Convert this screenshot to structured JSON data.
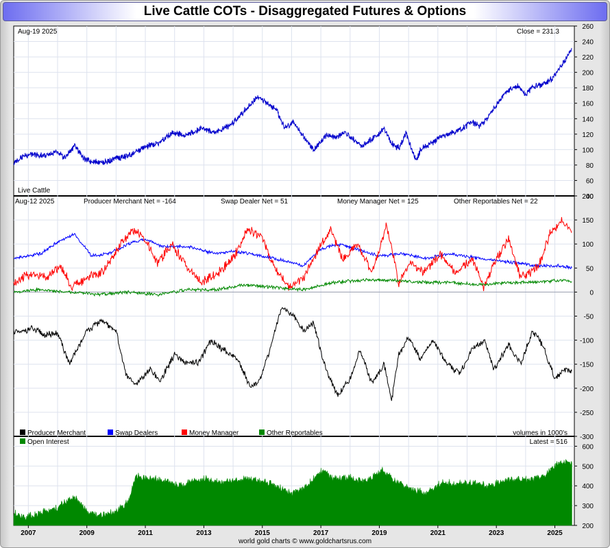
{
  "header": {
    "title": "Live Cattle COTs - Disaggregated Futures & Options"
  },
  "footer": {
    "credit": "world gold charts © www.goldchartsrus.com"
  },
  "colors": {
    "price": "#0000cc",
    "producer_merchant": "#000000",
    "swap_dealers": "#0000ff",
    "money_manager": "#ff0000",
    "other_reportables": "#008800",
    "open_interest": "#008800",
    "grid": "#dde2ee",
    "title_gradient": "#6d6df0"
  },
  "chart_data": [
    {
      "type": "line",
      "panel": "price",
      "date_label": "Aug-19  2025",
      "close_label": "Close = 231.3",
      "series_label": "Live Cattle",
      "x_range": [
        "2006-07",
        "2025-09"
      ],
      "ylim": [
        40,
        260
      ],
      "y_ticks": [
        40,
        60,
        80,
        100,
        120,
        140,
        160,
        180,
        200,
        220,
        240,
        260
      ],
      "series": [
        {
          "name": "Live Cattle",
          "color": "#0000cc",
          "points": [
            [
              "2006-07",
              82
            ],
            [
              "2006-10",
              90
            ],
            [
              "2007-01",
              94
            ],
            [
              "2007-06",
              92
            ],
            [
              "2007-12",
              96
            ],
            [
              "2008-04",
              90
            ],
            [
              "2008-08",
              105
            ],
            [
              "2008-12",
              88
            ],
            [
              "2009-03",
              84
            ],
            [
              "2009-09",
              84
            ],
            [
              "2010-01",
              88
            ],
            [
              "2010-06",
              92
            ],
            [
              "2010-12",
              102
            ],
            [
              "2011-06",
              108
            ],
            [
              "2011-12",
              122
            ],
            [
              "2012-06",
              118
            ],
            [
              "2012-12",
              128
            ],
            [
              "2013-06",
              122
            ],
            [
              "2013-12",
              132
            ],
            [
              "2014-04",
              145
            ],
            [
              "2014-08",
              158
            ],
            [
              "2014-11",
              168
            ],
            [
              "2015-03",
              160
            ],
            [
              "2015-07",
              150
            ],
            [
              "2015-10",
              128
            ],
            [
              "2016-02",
              136
            ],
            [
              "2016-06",
              116
            ],
            [
              "2016-10",
              100
            ],
            [
              "2017-03",
              118
            ],
            [
              "2017-07",
              116
            ],
            [
              "2017-11",
              122
            ],
            [
              "2018-03",
              112
            ],
            [
              "2018-06",
              104
            ],
            [
              "2018-10",
              114
            ],
            [
              "2019-03",
              126
            ],
            [
              "2019-06",
              108
            ],
            [
              "2019-09",
              102
            ],
            [
              "2019-12",
              122
            ],
            [
              "2020-04",
              86
            ],
            [
              "2020-06",
              100
            ],
            [
              "2020-10",
              108
            ],
            [
              "2021-01",
              114
            ],
            [
              "2021-05",
              120
            ],
            [
              "2021-10",
              126
            ],
            [
              "2022-03",
              136
            ],
            [
              "2022-06",
              130
            ],
            [
              "2022-09",
              140
            ],
            [
              "2022-12",
              154
            ],
            [
              "2023-04",
              170
            ],
            [
              "2023-07",
              180
            ],
            [
              "2023-10",
              182
            ],
            [
              "2024-01",
              170
            ],
            [
              "2024-04",
              182
            ],
            [
              "2024-08",
              184
            ],
            [
              "2024-12",
              192
            ],
            [
              "2025-04",
              210
            ],
            [
              "2025-07",
              225
            ],
            [
              "2025-08",
              231.3
            ]
          ]
        }
      ]
    },
    {
      "type": "line",
      "panel": "cot",
      "date_label": "Aug-12  2025",
      "net_labels": [
        "Producer Merchant Net = -164",
        "Swap Dealer Net = 51",
        "Money Manager Net = 125",
        "Other Reportables Net = 22"
      ],
      "legend": [
        "Producer Merchant",
        "Swap Dealers",
        "Money Manager",
        "Other Reportables"
      ],
      "units_note": "volumes in 1000's",
      "ylim": [
        -300,
        200
      ],
      "y_ticks": [
        -300,
        -250,
        -200,
        -150,
        -100,
        -50,
        0,
        50,
        100,
        150,
        200
      ],
      "series": [
        {
          "name": "Producer Merchant",
          "color": "#000000",
          "points": [
            [
              "2006-07",
              -80
            ],
            [
              "2006-10",
              -85
            ],
            [
              "2007-02",
              -75
            ],
            [
              "2007-08",
              -90
            ],
            [
              "2008-01",
              -85
            ],
            [
              "2008-06",
              -150
            ],
            [
              "2008-09",
              -120
            ],
            [
              "2009-01",
              -80
            ],
            [
              "2009-07",
              -60
            ],
            [
              "2010-01",
              -80
            ],
            [
              "2010-05",
              -170
            ],
            [
              "2010-09",
              -195
            ],
            [
              "2011-03",
              -160
            ],
            [
              "2011-07",
              -185
            ],
            [
              "2012-01",
              -130
            ],
            [
              "2012-06",
              -150
            ],
            [
              "2012-11",
              -145
            ],
            [
              "2013-04",
              -100
            ],
            [
              "2013-09",
              -120
            ],
            [
              "2014-03",
              -140
            ],
            [
              "2014-08",
              -195
            ],
            [
              "2014-12",
              -185
            ],
            [
              "2015-04",
              -120
            ],
            [
              "2015-09",
              -30
            ],
            [
              "2016-02",
              -50
            ],
            [
              "2016-06",
              -80
            ],
            [
              "2016-10",
              -65
            ],
            [
              "2017-03",
              -160
            ],
            [
              "2017-08",
              -215
            ],
            [
              "2018-01",
              -180
            ],
            [
              "2018-05",
              -120
            ],
            [
              "2018-10",
              -190
            ],
            [
              "2019-03",
              -150
            ],
            [
              "2019-06",
              -225
            ],
            [
              "2019-09",
              -130
            ],
            [
              "2020-01",
              -95
            ],
            [
              "2020-06",
              -140
            ],
            [
              "2020-11",
              -100
            ],
            [
              "2021-05",
              -150
            ],
            [
              "2021-10",
              -170
            ],
            [
              "2022-03",
              -120
            ],
            [
              "2022-08",
              -100
            ],
            [
              "2022-12",
              -160
            ],
            [
              "2023-06",
              -110
            ],
            [
              "2023-11",
              -150
            ],
            [
              "2024-04",
              -80
            ],
            [
              "2024-08",
              -110
            ],
            [
              "2025-01",
              -180
            ],
            [
              "2025-05",
              -160
            ],
            [
              "2025-08",
              -164
            ]
          ]
        },
        {
          "name": "Swap Dealers",
          "color": "#0000ff",
          "points": [
            [
              "2006-07",
              70
            ],
            [
              "2007-06",
              80
            ],
            [
              "2008-03",
              110
            ],
            [
              "2008-08",
              120
            ],
            [
              "2009-03",
              75
            ],
            [
              "2009-10",
              80
            ],
            [
              "2010-06",
              100
            ],
            [
              "2011-01",
              110
            ],
            [
              "2011-08",
              95
            ],
            [
              "2012-06",
              95
            ],
            [
              "2013-06",
              80
            ],
            [
              "2014-01",
              85
            ],
            [
              "2014-08",
              80
            ],
            [
              "2015-06",
              70
            ],
            [
              "2016-06",
              55
            ],
            [
              "2017-01",
              90
            ],
            [
              "2017-08",
              100
            ],
            [
              "2018-03",
              90
            ],
            [
              "2019-01",
              75
            ],
            [
              "2019-10",
              80
            ],
            [
              "2020-08",
              70
            ],
            [
              "2021-06",
              80
            ],
            [
              "2022-06",
              70
            ],
            [
              "2023-03",
              65
            ],
            [
              "2023-10",
              60
            ],
            [
              "2024-06",
              55
            ],
            [
              "2025-03",
              55
            ],
            [
              "2025-08",
              51
            ]
          ]
        },
        {
          "name": "Money Manager",
          "color": "#ff0000",
          "points": [
            [
              "2006-07",
              20
            ],
            [
              "2007-03",
              40
            ],
            [
              "2007-09",
              30
            ],
            [
              "2008-02",
              55
            ],
            [
              "2008-07",
              10
            ],
            [
              "2009-01",
              30
            ],
            [
              "2009-08",
              45
            ],
            [
              "2010-03",
              100
            ],
            [
              "2010-08",
              130
            ],
            [
              "2011-01",
              110
            ],
            [
              "2011-06",
              60
            ],
            [
              "2011-12",
              100
            ],
            [
              "2012-06",
              50
            ],
            [
              "2012-12",
              20
            ],
            [
              "2013-07",
              40
            ],
            [
              "2014-02",
              80
            ],
            [
              "2014-07",
              130
            ],
            [
              "2015-01",
              115
            ],
            [
              "2015-06",
              50
            ],
            [
              "2015-12",
              10
            ],
            [
              "2016-06",
              30
            ],
            [
              "2016-12",
              90
            ],
            [
              "2017-05",
              130
            ],
            [
              "2017-10",
              70
            ],
            [
              "2018-04",
              100
            ],
            [
              "2018-10",
              40
            ],
            [
              "2019-04",
              140
            ],
            [
              "2019-09",
              20
            ],
            [
              "2020-02",
              60
            ],
            [
              "2020-07",
              40
            ],
            [
              "2021-02",
              80
            ],
            [
              "2021-08",
              40
            ],
            [
              "2022-03",
              70
            ],
            [
              "2022-08",
              10
            ],
            [
              "2022-12",
              60
            ],
            [
              "2023-06",
              110
            ],
            [
              "2023-11",
              30
            ],
            [
              "2024-06",
              50
            ],
            [
              "2024-11",
              120
            ],
            [
              "2025-04",
              150
            ],
            [
              "2025-08",
              125
            ]
          ]
        },
        {
          "name": "Other Reportables",
          "color": "#008800",
          "points": [
            [
              "2006-07",
              0
            ],
            [
              "2007-06",
              5
            ],
            [
              "2008-06",
              0
            ],
            [
              "2009-06",
              -5
            ],
            [
              "2010-06",
              0
            ],
            [
              "2011-06",
              -5
            ],
            [
              "2012-06",
              5
            ],
            [
              "2013-06",
              5
            ],
            [
              "2014-06",
              15
            ],
            [
              "2015-06",
              10
            ],
            [
              "2016-06",
              5
            ],
            [
              "2017-06",
              20
            ],
            [
              "2018-06",
              25
            ],
            [
              "2019-06",
              25
            ],
            [
              "2020-06",
              20
            ],
            [
              "2021-06",
              20
            ],
            [
              "2022-06",
              15
            ],
            [
              "2023-06",
              20
            ],
            [
              "2024-06",
              20
            ],
            [
              "2025-03",
              25
            ],
            [
              "2025-08",
              22
            ]
          ]
        }
      ]
    },
    {
      "type": "area",
      "panel": "open_interest",
      "legend": [
        "Open Interest"
      ],
      "latest_label": "Latest = 516",
      "ylim": [
        200,
        650
      ],
      "y_ticks": [
        200,
        300,
        400,
        500,
        600
      ],
      "x_ticks": [
        "2007",
        "2009",
        "2011",
        "2013",
        "2015",
        "2017",
        "2019",
        "2021",
        "2023",
        "2025"
      ],
      "series": [
        {
          "name": "Open Interest",
          "color": "#008800",
          "points": [
            [
              "2006-07",
              260
            ],
            [
              "2007-01",
              245
            ],
            [
              "2007-06",
              265
            ],
            [
              "2008-01",
              290
            ],
            [
              "2008-08",
              350
            ],
            [
              "2009-01",
              270
            ],
            [
              "2009-06",
              250
            ],
            [
              "2009-12",
              265
            ],
            [
              "2010-06",
              320
            ],
            [
              "2010-09",
              450
            ],
            [
              "2011-03",
              440
            ],
            [
              "2011-08",
              430
            ],
            [
              "2012-02",
              400
            ],
            [
              "2012-08",
              420
            ],
            [
              "2013-01",
              440
            ],
            [
              "2013-07",
              420
            ],
            [
              "2014-01",
              430
            ],
            [
              "2014-07",
              440
            ],
            [
              "2015-01",
              420
            ],
            [
              "2015-07",
              400
            ],
            [
              "2016-01",
              360
            ],
            [
              "2016-07",
              400
            ],
            [
              "2017-02",
              480
            ],
            [
              "2017-06",
              440
            ],
            [
              "2018-01",
              440
            ],
            [
              "2018-07",
              420
            ],
            [
              "2019-02",
              480
            ],
            [
              "2019-08",
              420
            ],
            [
              "2020-03",
              380
            ],
            [
              "2020-08",
              360
            ],
            [
              "2021-03",
              420
            ],
            [
              "2021-08",
              410
            ],
            [
              "2022-03",
              420
            ],
            [
              "2022-09",
              400
            ],
            [
              "2023-03",
              420
            ],
            [
              "2023-09",
              440
            ],
            [
              "2024-03",
              430
            ],
            [
              "2024-09",
              450
            ],
            [
              "2025-03",
              520
            ],
            [
              "2025-08",
              516
            ]
          ]
        }
      ]
    }
  ]
}
